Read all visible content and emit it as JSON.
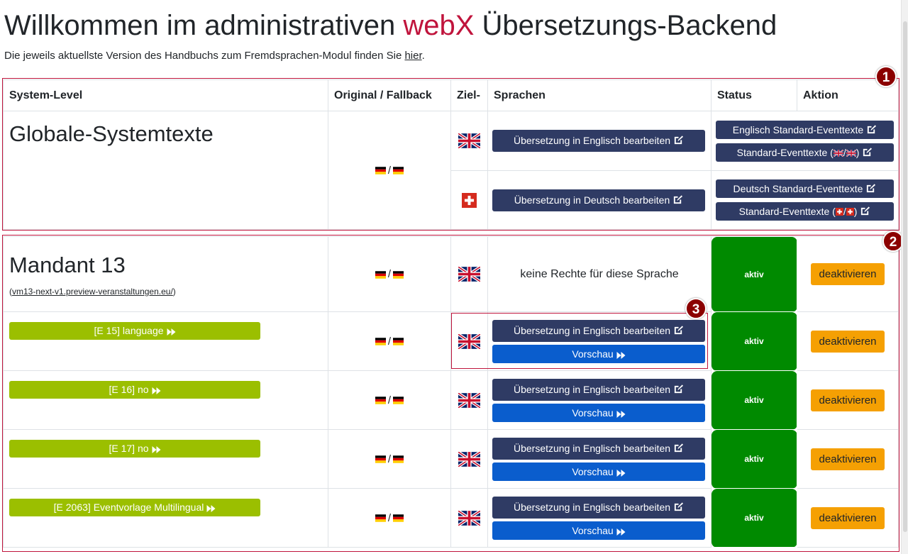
{
  "header": {
    "title_pre": "Willkommen im administrativen ",
    "title_brand": "webX",
    "title_post": " Übersetzungs-Backend",
    "subtitle_pre": "Die jeweils aktuellste Version des Handbuchs zum Fremdsprachen-Modul finden Sie ",
    "subtitle_link": "hier",
    "subtitle_post": "."
  },
  "table": {
    "columns": {
      "system_level": "System-Level",
      "original": "Original / Fallback",
      "ziel": "Ziel-",
      "sprachen": "Sprachen",
      "status": "Status",
      "aktion": "Aktion"
    }
  },
  "global": {
    "label": "Globale-Systemtexte",
    "fallback_sep": "/",
    "rows": [
      {
        "flag": "uk-flag-icon",
        "edit_label": "Übersetzung in Englisch bearbeiten",
        "side_1": "Englisch Standard-Eventtexte",
        "side_2_pre": "Standard-Eventtexte (",
        "side_2_sep": "/",
        "side_2_post": ")"
      },
      {
        "flag": "swiss-flag-icon",
        "edit_label": "Übersetzung in Deutsch bearbeiten",
        "side_1": "Deutsch Standard-Eventtexte",
        "side_2_pre": "Standard-Eventtexte (",
        "side_2_sep": "/",
        "side_2_post": ")"
      }
    ]
  },
  "mandant": {
    "label": "Mandant 13",
    "domain_pre": "(",
    "domain_link": "vm13-next-v1.preview-veranstaltungen.eu/",
    "domain_post": ")",
    "no_rights": "keine Rechte für diese Sprache",
    "status": "aktiv",
    "action": "deaktivieren",
    "fallback_sep": "/"
  },
  "events": [
    {
      "label": "[E 15] language",
      "edit_label": "Übersetzung in Englisch bearbeiten",
      "preview_label": "Vorschau",
      "status": "aktiv",
      "action": "deaktivieren",
      "fallback_sep": "/"
    },
    {
      "label": "[E 16] no",
      "edit_label": "Übersetzung in Englisch bearbeiten",
      "preview_label": "Vorschau",
      "status": "aktiv",
      "action": "deaktivieren",
      "fallback_sep": "/"
    },
    {
      "label": "[E 17] no",
      "edit_label": "Übersetzung in Englisch bearbeiten",
      "preview_label": "Vorschau",
      "status": "aktiv",
      "action": "deaktivieren",
      "fallback_sep": "/"
    },
    {
      "label": "[E 2063] Eventvorlage Multilingual",
      "edit_label": "Übersetzung in Englisch bearbeiten",
      "preview_label": "Vorschau",
      "status": "aktiv",
      "action": "deaktivieren",
      "fallback_sep": "/"
    }
  ],
  "markers": [
    "1",
    "2",
    "3"
  ],
  "colors": {
    "brand": "#c0143c",
    "btn_dark": "#2f3b64",
    "btn_blue": "#0a5dcd",
    "status_green": "#008a00",
    "deactivate_orange": "#f5a003",
    "event_green": "#9bbf00",
    "marker": "#8b0000"
  }
}
